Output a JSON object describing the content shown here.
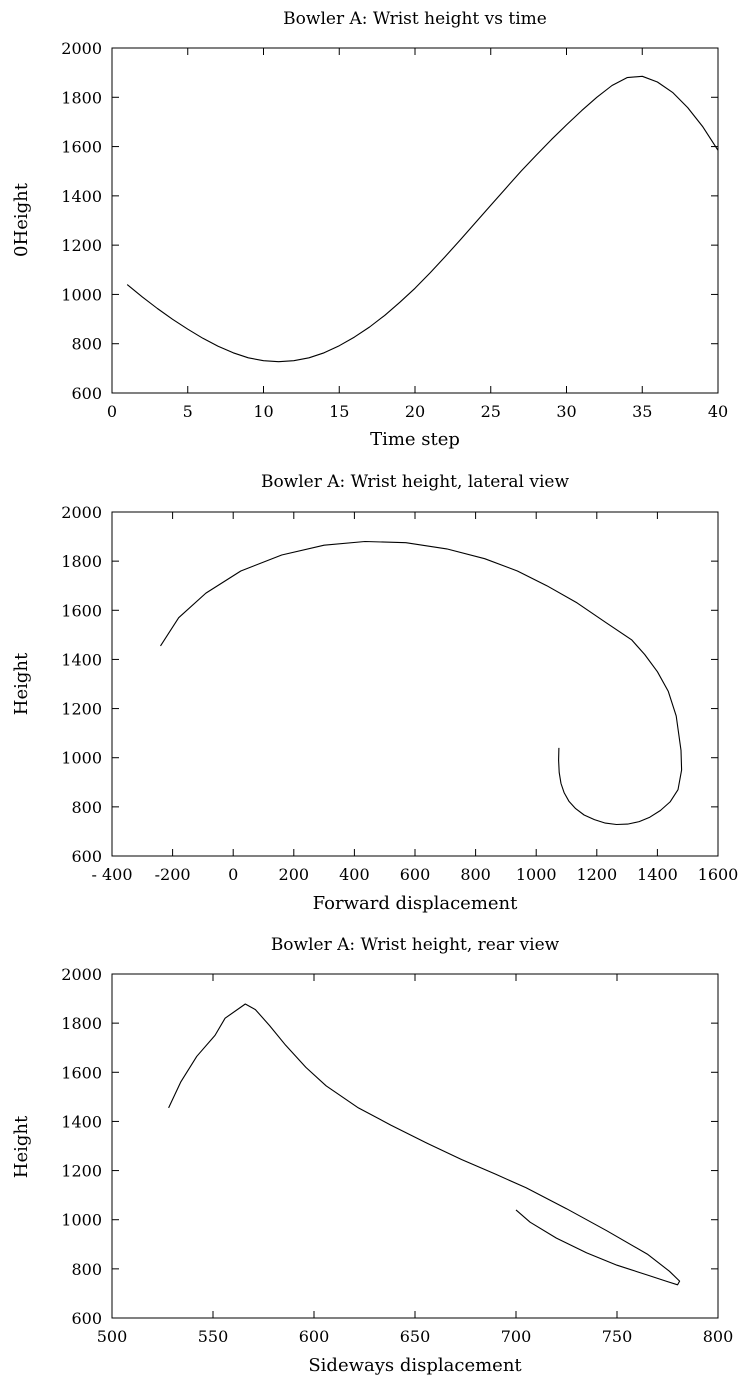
{
  "chart_data": [
    {
      "type": "line",
      "title": "Bowler A: Wrist height vs time",
      "xlabel": "Time step",
      "ylabel": "0Height",
      "xlim": [
        0,
        40
      ],
      "ylim": [
        600,
        2000
      ],
      "xticks": [
        0,
        5,
        10,
        15,
        20,
        25,
        30,
        35,
        40
      ],
      "yticks": [
        600,
        800,
        1000,
        1200,
        1400,
        1600,
        1800,
        2000
      ],
      "grid": false,
      "series": [
        {
          "x": [
            1,
            2,
            3,
            4,
            5,
            6,
            7,
            8,
            9,
            10,
            11,
            12,
            13,
            14,
            15,
            16,
            17,
            18,
            19,
            20,
            21,
            22,
            23,
            24,
            25,
            26,
            27,
            28,
            29,
            30,
            31,
            32,
            33,
            34,
            35,
            36,
            37,
            38,
            39,
            40
          ],
          "y": [
            1040,
            990,
            943,
            899,
            859,
            822,
            790,
            763,
            743,
            731,
            727,
            731,
            743,
            763,
            792,
            827,
            868,
            915,
            968,
            1025,
            1088,
            1154,
            1222,
            1292,
            1362,
            1431,
            1500,
            1565,
            1628,
            1688,
            1746,
            1800,
            1848,
            1880,
            1885,
            1862,
            1820,
            1758,
            1680,
            1585
          ]
        }
      ]
    },
    {
      "type": "line",
      "title": "Bowler A: Wrist height, lateral view",
      "xlabel": "Forward displacement",
      "ylabel": "Height",
      "xlim": [
        -400,
        1600
      ],
      "ylim": [
        600,
        2000
      ],
      "xticks": [
        -400,
        -200,
        0,
        200,
        400,
        600,
        800,
        1000,
        1200,
        1400,
        1600
      ],
      "xtick_labels": [
        "- 400",
        "-200",
        "0",
        "200",
        "400",
        "600",
        "800",
        "1000",
        "1200",
        "1400",
        "1600"
      ],
      "yticks": [
        600,
        800,
        1000,
        1200,
        1400,
        1600,
        1800,
        2000
      ],
      "grid": false,
      "series": [
        {
          "x": [
            1075,
            1074,
            1076,
            1082,
            1092,
            1108,
            1130,
            1158,
            1192,
            1228,
            1265,
            1302,
            1340,
            1375,
            1410,
            1442,
            1468,
            1480,
            1478,
            1462,
            1436,
            1400,
            1358,
            1315,
            1230,
            1135,
            1035,
            938,
            830,
            705,
            570,
            435,
            300,
            160,
            25,
            -90,
            -180,
            -240
          ],
          "y": [
            1040,
            990,
            940,
            895,
            858,
            823,
            793,
            767,
            748,
            734,
            728,
            730,
            740,
            758,
            785,
            820,
            870,
            950,
            1030,
            1170,
            1270,
            1350,
            1420,
            1480,
            1550,
            1630,
            1700,
            1760,
            1810,
            1850,
            1875,
            1880,
            1865,
            1825,
            1760,
            1670,
            1570,
            1455
          ]
        }
      ]
    },
    {
      "type": "line",
      "title": "Bowler A: Wrist height, rear view",
      "xlabel": "Sideways displacement",
      "ylabel": "Height",
      "xlim": [
        500,
        800
      ],
      "ylim": [
        600,
        2000
      ],
      "xticks": [
        500,
        550,
        600,
        650,
        700,
        750,
        800
      ],
      "yticks": [
        600,
        800,
        1000,
        1200,
        1400,
        1600,
        1800,
        2000
      ],
      "grid": false,
      "series": [
        {
          "x": [
            700,
            707,
            720,
            735,
            750,
            765,
            775,
            780,
            781,
            776,
            765,
            745,
            725,
            705,
            690,
            673,
            655,
            638,
            622,
            606,
            596,
            586,
            578,
            571,
            566,
            556,
            551,
            542,
            534,
            528
          ],
          "y": [
            1040,
            990,
            925,
            865,
            815,
            775,
            748,
            735,
            750,
            790,
            860,
            955,
            1045,
            1130,
            1185,
            1245,
            1315,
            1385,
            1455,
            1545,
            1620,
            1710,
            1790,
            1855,
            1878,
            1820,
            1750,
            1665,
            1560,
            1455
          ]
        }
      ]
    }
  ]
}
